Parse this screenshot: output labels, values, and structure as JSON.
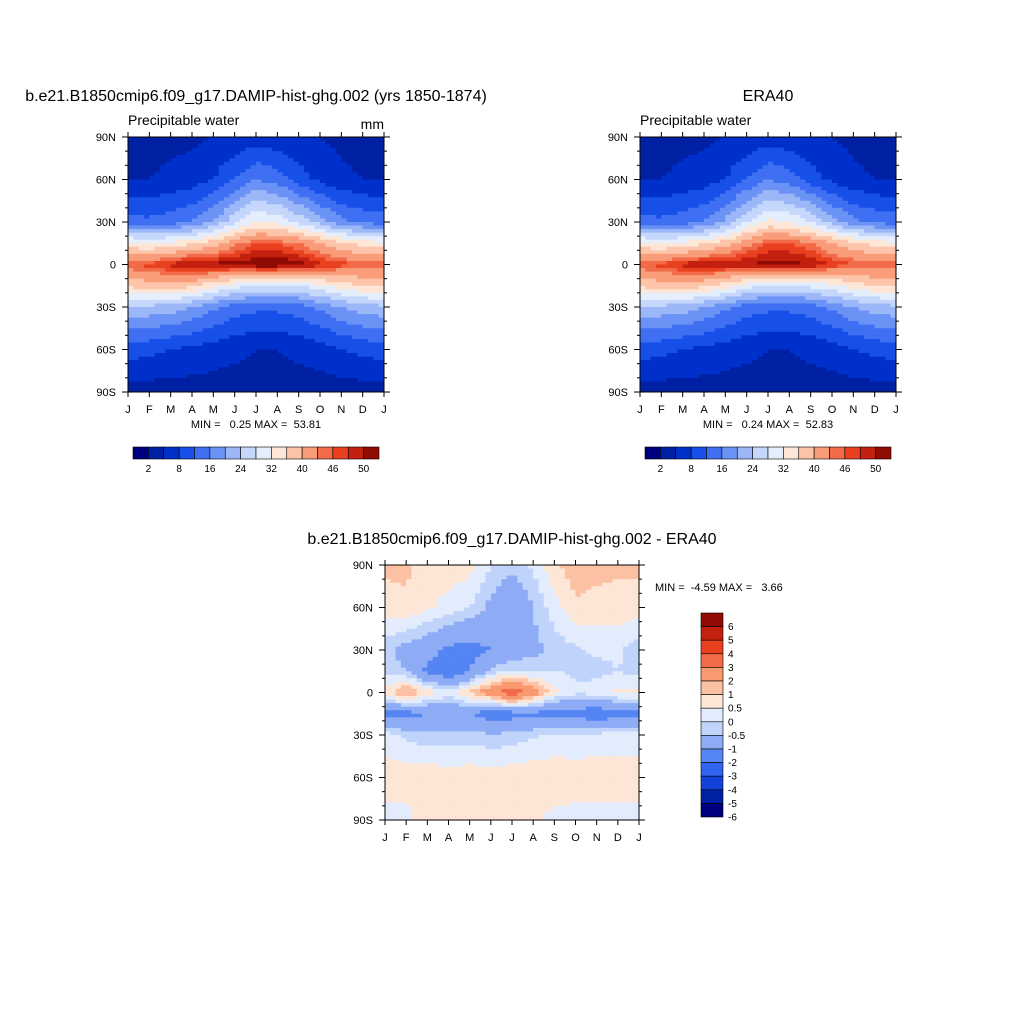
{
  "chart_data": [
    {
      "type": "heatmap",
      "title": "b.e21.B1850cmip6.f09_g17.DAMIP-hist-ghg.002 (yrs 1850-1874)",
      "subtitle_left": "Precipitable water",
      "units": "mm",
      "x_ticks": [
        "J",
        "F",
        "M",
        "A",
        "M",
        "J",
        "J",
        "A",
        "S",
        "O",
        "N",
        "D",
        "J"
      ],
      "y_ticks": [
        "90N",
        "60N",
        "30N",
        "0",
        "30S",
        "60S",
        "90S"
      ],
      "stats_text": "MIN =   0.25 MAX =  53.81",
      "min": 0.25,
      "max": 53.81,
      "colorbar_labels": [
        "2",
        "8",
        "16",
        "24",
        "32",
        "40",
        "46",
        "50"
      ],
      "colorbar_levels": [
        2,
        4,
        8,
        12,
        16,
        20,
        24,
        28,
        32,
        36,
        40,
        44,
        46,
        48,
        50
      ],
      "grid_lat": [
        90,
        60,
        30,
        15,
        0,
        -15,
        -30,
        -60,
        -90
      ],
      "grid_month": [
        0,
        1,
        2,
        3,
        4,
        5,
        6,
        7,
        8,
        9,
        10,
        11,
        12
      ],
      "values": [
        [
          2,
          2,
          3,
          3,
          4,
          5,
          6,
          5,
          5,
          4,
          3,
          2,
          2
        ],
        [
          4,
          4,
          5,
          6,
          8,
          12,
          16,
          14,
          10,
          7,
          5,
          4,
          4
        ],
        [
          14,
          13,
          14,
          16,
          20,
          27,
          32,
          31,
          27,
          22,
          17,
          15,
          14
        ],
        [
          33,
          32,
          33,
          35,
          38,
          43,
          46,
          46,
          44,
          40,
          37,
          34,
          33
        ],
        [
          46,
          47,
          49,
          51,
          51,
          51,
          52,
          52,
          51,
          49,
          47,
          46,
          46
        ],
        [
          37,
          38,
          39,
          37,
          33,
          30,
          28,
          28,
          28,
          31,
          34,
          36,
          37
        ],
        [
          23,
          23,
          22,
          20,
          17,
          14,
          13,
          13,
          14,
          17,
          20,
          22,
          23
        ],
        [
          10,
          9,
          8,
          7,
          6,
          5,
          4,
          4,
          5,
          6,
          8,
          9,
          10
        ],
        [
          2,
          2,
          2,
          2,
          2,
          2,
          2,
          2,
          2,
          2,
          2,
          2,
          2
        ]
      ]
    },
    {
      "type": "heatmap",
      "title": "ERA40",
      "subtitle_left": "Precipitable water",
      "x_ticks": [
        "J",
        "F",
        "M",
        "A",
        "M",
        "J",
        "J",
        "A",
        "S",
        "O",
        "N",
        "D",
        "J"
      ],
      "y_ticks": [
        "90N",
        "60N",
        "30N",
        "0",
        "30S",
        "60S",
        "90S"
      ],
      "stats_text": "MIN =   0.24 MAX =  52.83",
      "min": 0.24,
      "max": 52.83,
      "colorbar_labels": [
        "2",
        "8",
        "16",
        "24",
        "32",
        "40",
        "46",
        "50"
      ],
      "colorbar_levels": [
        2,
        4,
        8,
        12,
        16,
        20,
        24,
        28,
        32,
        36,
        40,
        44,
        46,
        48,
        50
      ],
      "grid_lat": [
        90,
        60,
        30,
        15,
        0,
        -15,
        -30,
        -60,
        -90
      ],
      "grid_month": [
        0,
        1,
        2,
        3,
        4,
        5,
        6,
        7,
        8,
        9,
        10,
        11,
        12
      ],
      "values": [
        [
          2,
          2,
          3,
          3,
          4,
          5,
          6,
          5,
          5,
          4,
          3,
          2,
          2
        ],
        [
          4,
          4,
          5,
          6,
          8,
          12,
          16,
          14,
          10,
          7,
          5,
          4,
          4
        ],
        [
          14,
          13,
          14,
          16,
          21,
          28,
          33,
          32,
          28,
          22,
          17,
          15,
          14
        ],
        [
          33,
          32,
          33,
          35,
          38,
          43,
          46,
          46,
          44,
          40,
          37,
          34,
          33
        ],
        [
          46,
          47,
          49,
          50,
          50,
          50,
          51,
          51,
          50,
          48,
          46,
          46,
          46
        ],
        [
          37,
          38,
          39,
          37,
          34,
          30,
          28,
          28,
          29,
          31,
          34,
          36,
          37
        ],
        [
          23,
          23,
          22,
          20,
          17,
          14,
          13,
          13,
          14,
          17,
          20,
          22,
          23
        ],
        [
          10,
          9,
          8,
          7,
          6,
          5,
          4,
          4,
          5,
          6,
          8,
          9,
          10
        ],
        [
          2,
          2,
          2,
          2,
          2,
          2,
          2,
          2,
          2,
          2,
          2,
          2,
          2
        ]
      ]
    },
    {
      "type": "heatmap",
      "title": "b.e21.B1850cmip6.f09_g17.DAMIP-hist-ghg.002 - ERA40",
      "x_ticks": [
        "J",
        "F",
        "M",
        "A",
        "M",
        "J",
        "J",
        "A",
        "S",
        "O",
        "N",
        "D",
        "J"
      ],
      "y_ticks": [
        "90N",
        "60N",
        "30N",
        "0",
        "30S",
        "60S",
        "90S"
      ],
      "stats_text": "MIN =  -4.59 MAX =   3.66",
      "min": -4.59,
      "max": 3.66,
      "colorbar_labels": [
        "6",
        "5",
        "4",
        "3",
        "2",
        "1",
        "0.5",
        "0",
        "-0.5",
        "-1",
        "-2",
        "-3",
        "-4",
        "-5",
        "-6"
      ],
      "colorbar_levels": [
        -6,
        -5,
        -4,
        -3,
        -2,
        -1,
        -0.5,
        0,
        0.5,
        1,
        2,
        3,
        4,
        5,
        6
      ],
      "grid_lat": [
        90,
        60,
        30,
        15,
        0,
        -15,
        -30,
        -60,
        -90
      ],
      "grid_month": [
        0,
        1,
        2,
        3,
        4,
        5,
        6,
        7,
        8,
        9,
        10,
        11,
        12
      ],
      "values": [
        [
          0.6,
          0.6,
          0.3,
          0.3,
          0.2,
          -0.5,
          -0.8,
          -0.4,
          0.4,
          0.8,
          0.7,
          0.6,
          0.6
        ],
        [
          0.3,
          0.4,
          0.1,
          -0.2,
          -0.5,
          -1.2,
          -1.8,
          -1.0,
          -0.2,
          0.4,
          0.3,
          0.3,
          0.3
        ],
        [
          -0.8,
          -1.3,
          -1.6,
          -2.2,
          -2.4,
          -2.0,
          -1.5,
          -1.2,
          -0.8,
          -0.6,
          -0.4,
          -0.4,
          -0.8
        ],
        [
          -0.7,
          -1.0,
          -2.3,
          -2.8,
          -2.0,
          -0.8,
          -0.4,
          -0.6,
          -0.5,
          -0.6,
          -0.7,
          -0.5,
          -0.7
        ],
        [
          0.2,
          1.2,
          0.4,
          -0.3,
          0.6,
          1.6,
          2.8,
          1.5,
          0.2,
          -0.4,
          -0.2,
          0.1,
          0.2
        ],
        [
          -2.2,
          -2.4,
          -2.0,
          -1.7,
          -1.9,
          -2.6,
          -2.4,
          -2.2,
          -2.5,
          -2.3,
          -2.8,
          -2.2,
          -2.2
        ],
        [
          -0.3,
          -0.6,
          -0.8,
          -0.8,
          -0.7,
          -0.9,
          -0.8,
          -0.6,
          -0.4,
          -0.4,
          -0.3,
          -0.3,
          -0.3
        ],
        [
          0.3,
          0.3,
          0.35,
          0.3,
          0.3,
          0.3,
          0.35,
          0.4,
          0.4,
          0.3,
          0.3,
          0.3,
          0.3
        ],
        [
          -0.2,
          -0.2,
          0.3,
          0.3,
          0.35,
          0.3,
          0.2,
          0.15,
          -0.2,
          -0.2,
          -0.2,
          -0.2,
          -0.2
        ]
      ]
    }
  ],
  "colors": {
    "precip_palette": [
      "#00007f",
      "#0021a4",
      "#0030cc",
      "#1750e8",
      "#3f6ff2",
      "#6a93f5",
      "#9cb7f8",
      "#c5d7fb",
      "#e5eefc",
      "#fde6d6",
      "#fcc4a8",
      "#f99c7a",
      "#f26a48",
      "#e9401f",
      "#c4200f",
      "#8f0b04"
    ],
    "diff_palette": [
      "#00007f",
      "#0021a4",
      "#1243d9",
      "#3164ef",
      "#5585f3",
      "#8eacf6",
      "#c0d4fb",
      "#e3ecfd",
      "#fde6d6",
      "#fcc1a3",
      "#f9996f",
      "#f26a48",
      "#e9401f",
      "#c4200f",
      "#8f0b04"
    ]
  }
}
